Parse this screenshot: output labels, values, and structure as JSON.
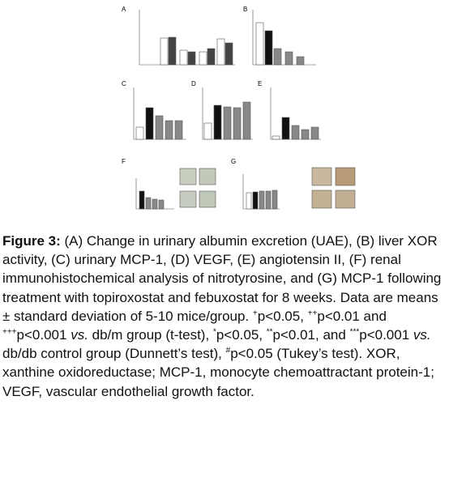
{
  "figure": {
    "panels": [
      "A",
      "B",
      "C",
      "D",
      "E",
      "F",
      "G"
    ]
  },
  "caption": {
    "segments": [
      "Figure 3:",
      " (A) Change in urinary albumin excretion (UAE), (B) liver XOR activity, (C) urinary MCP-1, (D) VEGF, (E) angiotensin II, (F) renal immunohistochemical analysis of nitrotyrosine, and (G) MCP-1 following treatment with topiroxostat and febuxostat for 8 weeks. Data are means ± standard deviation of 5-10 mice/group. ",
      "+",
      "p<0.05, ",
      "++",
      "p<0.01 and ",
      "+++",
      "p<0.001 ",
      "vs.",
      " db/m group (t-test), ",
      "*",
      "p<0.05, ",
      "**",
      "p<0.01, and ",
      "***",
      "p<0.001 ",
      "vs.",
      " db/db control group (Dunnett’s test), ",
      "#",
      "p<0.05 (Tukey’s test). XOR, xanthine oxidoreductase; MCP-1, monocyte chemoattractant protein-1; VEGF, vascular endothelial growth factor."
    ]
  }
}
